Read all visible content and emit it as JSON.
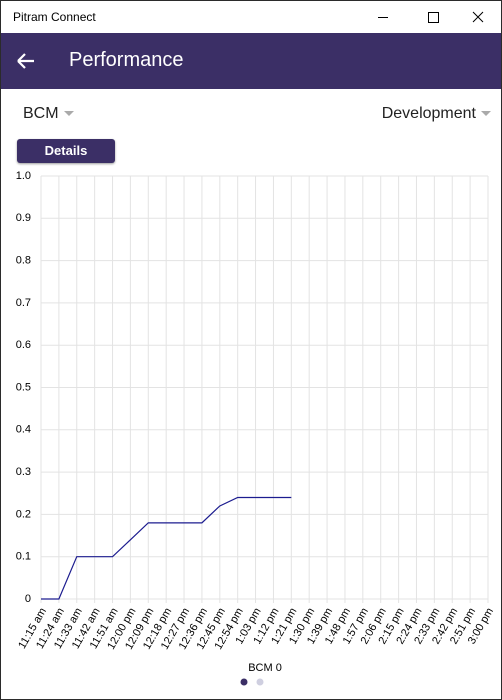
{
  "window": {
    "title": "Pitram Connect"
  },
  "header": {
    "title": "Performance"
  },
  "filters": {
    "left": "BCM",
    "right": "Development"
  },
  "button": {
    "label": "Details"
  },
  "chart_data": {
    "type": "line",
    "categories": [
      "11:15 am",
      "11:24 am",
      "11:33 am",
      "11:42 am",
      "11:51 am",
      "12:00 pm",
      "12:09 pm",
      "12:18 pm",
      "12:27 pm",
      "12:36 pm",
      "12:45 pm",
      "12:54 pm",
      "1:03 pm",
      "1:12 pm",
      "1:21 pm",
      "1:30 pm",
      "1:39 pm",
      "1:48 pm",
      "1:57 pm",
      "2:06 pm",
      "2:15 pm",
      "2:24 pm",
      "2:33 pm",
      "2:42 pm",
      "2:51 pm",
      "3:00 pm"
    ],
    "series": [
      {
        "name": "BCM 0",
        "color": "#1c1c8f",
        "values": [
          0,
          0,
          0.1,
          0.1,
          0.1,
          0.14,
          0.18,
          0.18,
          0.18,
          0.18,
          0.22,
          0.24,
          0.24,
          0.24,
          0.24,
          null,
          null,
          null,
          null,
          null,
          null,
          null,
          null,
          null,
          null,
          null
        ]
      }
    ],
    "ylim": [
      0,
      1
    ],
    "yticks": [
      0,
      0.1,
      0.2,
      0.3,
      0.4,
      0.5,
      0.6,
      0.7,
      0.8,
      0.9,
      {
        "value": 1,
        "label": "1.0"
      }
    ],
    "grid": true
  }
}
